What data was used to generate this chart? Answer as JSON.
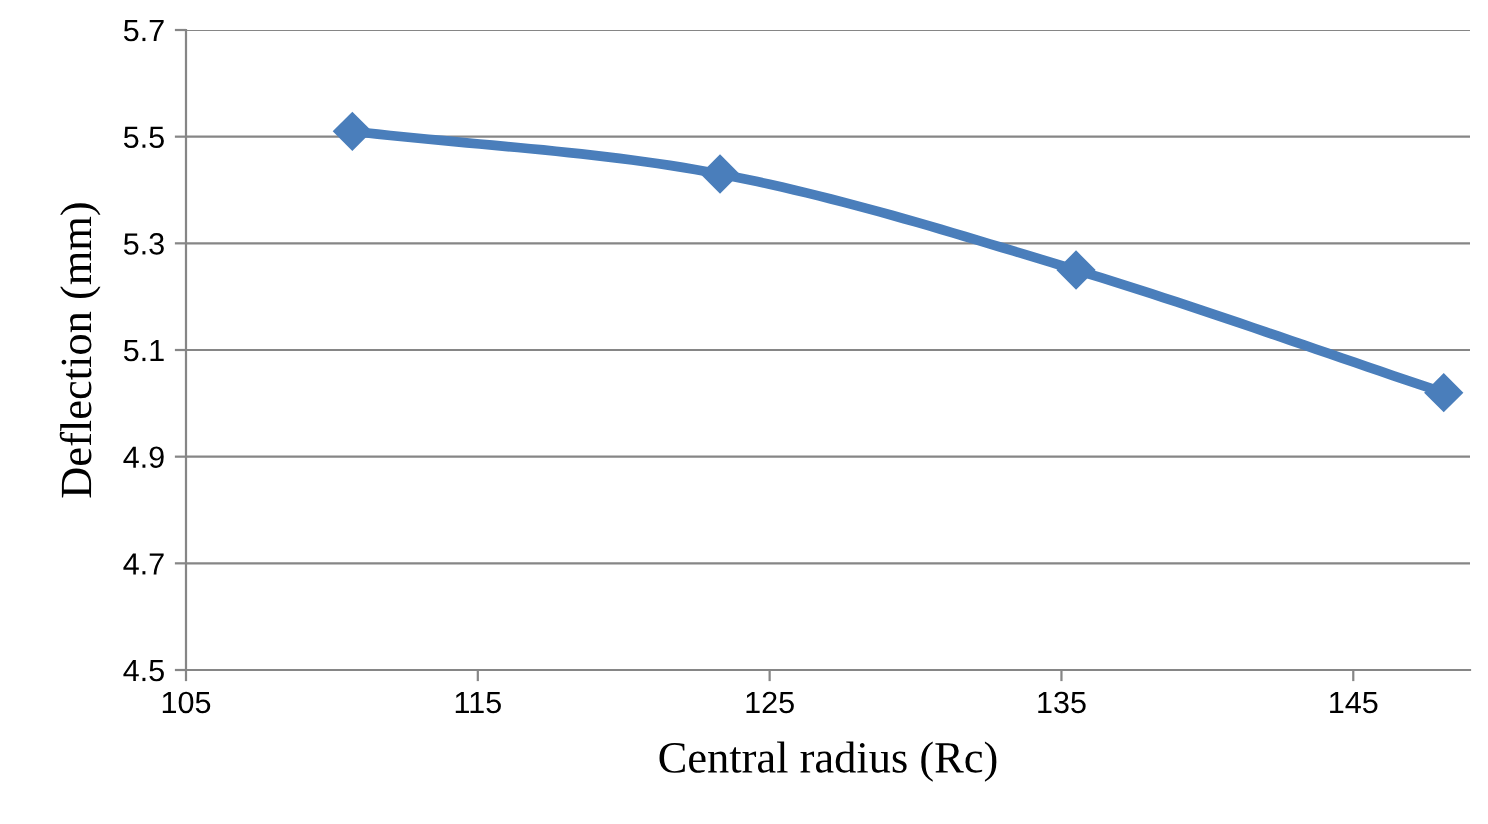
{
  "chart_data": {
    "type": "line",
    "xlabel": "Central radius (Rc)",
    "ylabel": "Deflection (mm)",
    "x": [
      110.7,
      123.3,
      135.5,
      148.1
    ],
    "series": [
      {
        "color": "#4a7ebb",
        "values": [
          5.51,
          5.43,
          5.25,
          5.02
        ]
      }
    ],
    "xlim": [
      105,
      149
    ],
    "xticks": [
      105,
      115,
      125,
      135,
      145
    ],
    "ylim": [
      4.5,
      5.7
    ],
    "yticks": [
      4.5,
      4.7,
      4.9,
      5.1,
      5.3,
      5.5,
      5.7
    ],
    "grid": "y",
    "marker": "diamond",
    "line_style": "solid",
    "legend": false
  }
}
